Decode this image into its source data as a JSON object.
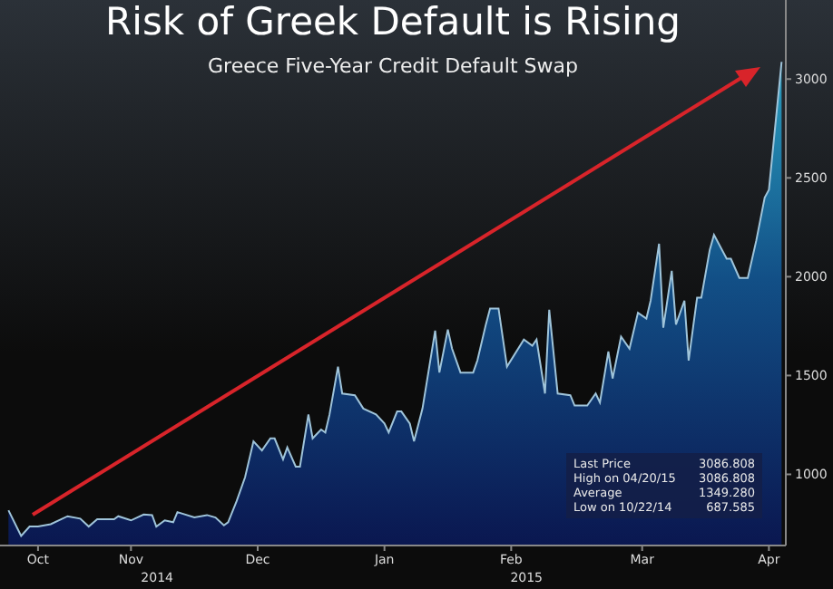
{
  "chart_data": {
    "type": "area",
    "title": "Risk of Greek Default is Rising",
    "subtitle": "Greece Five-Year Credit Default Swap",
    "x": [
      "2014-10-19",
      "2014-10-22",
      "2014-10-24",
      "2014-10-26",
      "2014-10-29",
      "2014-11-02",
      "2014-11-05",
      "2014-11-07",
      "2014-11-09",
      "2014-11-13",
      "2014-11-14",
      "2014-11-17",
      "2014-11-20",
      "2014-11-22",
      "2014-11-23",
      "2014-11-25",
      "2014-11-27",
      "2014-11-28",
      "2014-12-02",
      "2014-12-05",
      "2014-12-07",
      "2014-12-09",
      "2014-12-10",
      "2014-12-12",
      "2014-12-14",
      "2014-12-16",
      "2014-12-18",
      "2014-12-20",
      "2014-12-21",
      "2014-12-23",
      "2014-12-24",
      "2014-12-26",
      "2014-12-27",
      "2014-12-29",
      "2014-12-30",
      "2015-01-01",
      "2015-01-02",
      "2015-01-03",
      "2015-01-05",
      "2015-01-06",
      "2015-01-09",
      "2015-01-11",
      "2015-01-14",
      "2015-01-16",
      "2015-01-17",
      "2015-01-19",
      "2015-01-20",
      "2015-01-22",
      "2015-01-23",
      "2015-01-25",
      "2015-01-28",
      "2015-01-29",
      "2015-01-31",
      "2015-02-01",
      "2015-02-03",
      "2015-02-06",
      "2015-02-07",
      "2015-02-09",
      "2015-02-10",
      "2015-02-12",
      "2015-02-14",
      "2015-02-18",
      "2015-02-20",
      "2015-02-21",
      "2015-02-23",
      "2015-02-24",
      "2015-02-26",
      "2015-03-01",
      "2015-03-02",
      "2015-03-05",
      "2015-03-07",
      "2015-03-08",
      "2015-03-10",
      "2015-03-11",
      "2015-03-13",
      "2015-03-15",
      "2015-03-17",
      "2015-03-19",
      "2015-03-20",
      "2015-03-22",
      "2015-03-23",
      "2015-03-25",
      "2015-03-26",
      "2015-03-28",
      "2015-03-29",
      "2015-03-31",
      "2015-04-01",
      "2015-04-03",
      "2015-04-04",
      "2015-04-07",
      "2015-04-08",
      "2015-04-10",
      "2015-04-12",
      "2015-04-14",
      "2015-04-16",
      "2015-04-17",
      "2015-04-20"
    ],
    "series": [
      {
        "color": "#9fc4da",
        "values": [
          818,
          688,
          736,
          736,
          748,
          788,
          776,
          736,
          773,
          773,
          788,
          767,
          797,
          794,
          736,
          767,
          758,
          809,
          782,
          794,
          782,
          742,
          758,
          864,
          985,
          1167,
          1121,
          1182,
          1182,
          1076,
          1136,
          1039,
          1039,
          1303,
          1182,
          1227,
          1212,
          1303,
          1545,
          1409,
          1400,
          1333,
          1303,
          1257,
          1212,
          1318,
          1318,
          1257,
          1167,
          1333,
          1727,
          1515,
          1733,
          1636,
          1515,
          1515,
          1576,
          1758,
          1839,
          1839,
          1545,
          1682,
          1651,
          1682,
          1409,
          1833,
          1409,
          1400,
          1348,
          1348,
          1409,
          1364,
          1621,
          1485,
          1697,
          1636,
          1818,
          1788,
          1879,
          2167,
          1742,
          2030,
          1758,
          1879,
          1576,
          1894,
          1894,
          2136,
          2212,
          2091,
          2091,
          1994,
          1994,
          2182,
          2400,
          2440,
          3087
        ]
      }
    ],
    "xlim": [
      "2014-10-17",
      "2015-04-21"
    ],
    "xticks": [
      {
        "value": "2014-10-26",
        "label": "Oct"
      },
      {
        "value": "2014-11-17",
        "label": "Nov"
      },
      {
        "value": "2014-12-17",
        "label": "Dec"
      },
      {
        "value": "2015-01-16",
        "label": "Jan"
      },
      {
        "value": "2015-02-15",
        "label": "Feb"
      },
      {
        "value": "2015-03-18",
        "label": "Mar"
      },
      {
        "value": "2015-04-17",
        "label": "Apr"
      }
    ],
    "ylim": [
      640,
      3400
    ],
    "yticks": [
      1000,
      1500,
      2000,
      2500,
      3000
    ],
    "annotations": [
      "2014",
      "2015",
      "Last Price 3086.808",
      "High on 04/20/15 3086.808",
      "Average 1349.280",
      "Low on 10/22/14 687.585"
    ]
  }
}
